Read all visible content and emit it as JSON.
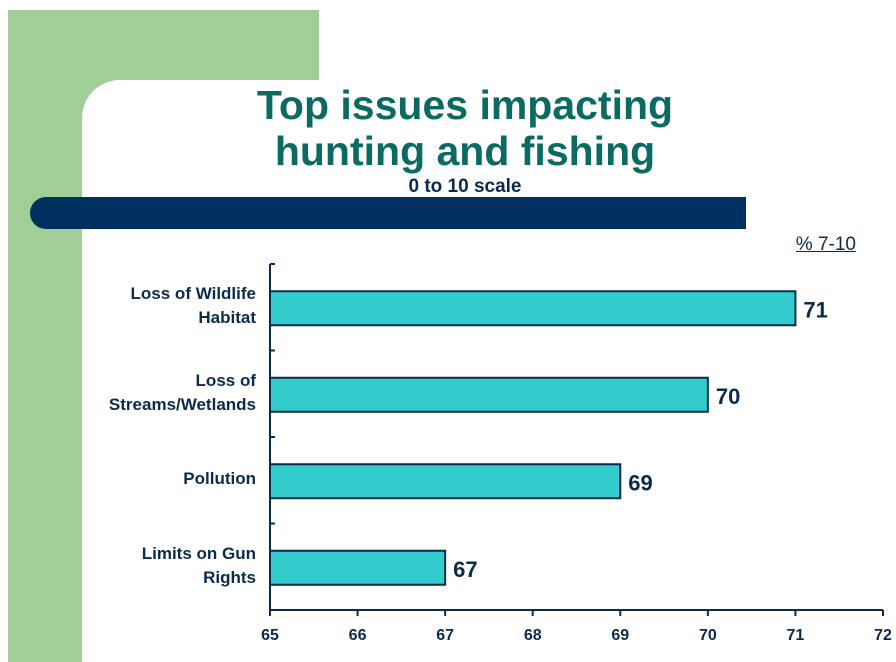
{
  "slide": {
    "title_line1": "Top issues impacting",
    "title_line2": "hunting and fishing",
    "subtitle": "0 to 10 scale",
    "pct_label": "% 7-10"
  },
  "colors": {
    "title": "#0b6a62",
    "bar_fill": "#33cccc",
    "bar_stroke": "#0b2a4c",
    "band": "#00305f",
    "green_block": "#a1cd96"
  },
  "chart_data": {
    "type": "bar",
    "orientation": "horizontal",
    "categories": [
      [
        "Loss of Wildlife",
        "Habitat"
      ],
      [
        "Loss of",
        "Streams/Wetlands"
      ],
      [
        "Pollution"
      ],
      [
        "Limits on Gun",
        "Rights"
      ]
    ],
    "values": [
      71,
      70,
      69,
      67
    ],
    "xlim": [
      65,
      72
    ],
    "xticks": [
      65,
      66,
      67,
      68,
      69,
      70,
      71,
      72
    ],
    "data_labels": [
      "71",
      "70",
      "69",
      "67"
    ],
    "grid": false
  }
}
